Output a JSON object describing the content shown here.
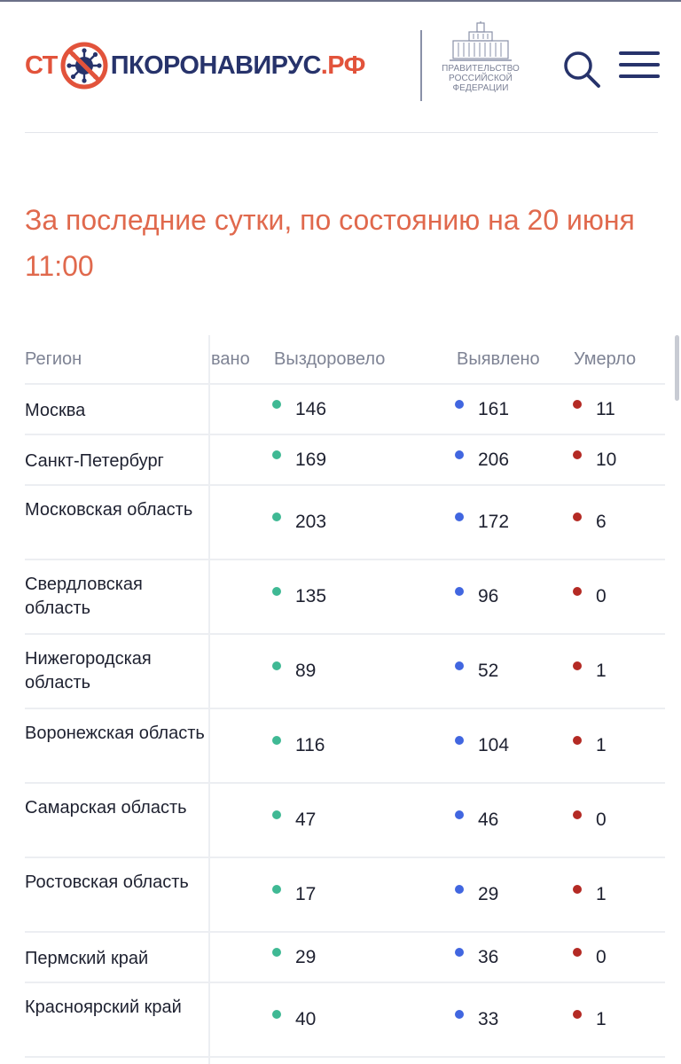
{
  "header": {
    "logo": {
      "part1": "СТ",
      "part2": "ПКОРОНАВИРУС",
      "part3": ".РФ",
      "icon": "virus-stop-icon"
    },
    "gov": {
      "lines": [
        "ПРАВИТЕЛЬСТВО",
        "РОССИЙСКОЙ",
        "ФЕДЕРАЦИИ"
      ],
      "icon": "government-building-icon"
    },
    "search_icon": "search-icon",
    "menu_icon": "hamburger-menu-icon"
  },
  "heading": {
    "line1": "За последние сутки, по состоянию на 20 июня",
    "line2": "11:00"
  },
  "table": {
    "columns": {
      "region": "Регион",
      "hidden": "вано",
      "recovered": "Выздоровело",
      "detected": "Выявлено",
      "died": "Умерло"
    },
    "rows": [
      {
        "region": "Москва",
        "recovered": "146",
        "detected": "161",
        "died": "11"
      },
      {
        "region": "Санкт-Петербург",
        "recovered": "169",
        "detected": "206",
        "died": "10"
      },
      {
        "region": "Московская область",
        "recovered": "203",
        "detected": "172",
        "died": "6"
      },
      {
        "region": "Свердловская область",
        "recovered": "135",
        "detected": "96",
        "died": "0"
      },
      {
        "region": "Нижегородская область",
        "recovered": "89",
        "detected": "52",
        "died": "1"
      },
      {
        "region": "Воронежская область",
        "recovered": "116",
        "detected": "104",
        "died": "1"
      },
      {
        "region": "Самарская область",
        "recovered": "47",
        "detected": "46",
        "died": "0"
      },
      {
        "region": "Ростовская область",
        "recovered": "17",
        "detected": "29",
        "died": "1"
      },
      {
        "region": "Пермский край",
        "recovered": "29",
        "detected": "36",
        "died": "0"
      },
      {
        "region": "Красноярский край",
        "recovered": "40",
        "detected": "33",
        "died": "1"
      }
    ]
  },
  "colors": {
    "accent": "#e2533b",
    "brand_blue": "#27336b",
    "heading": "#e0694d",
    "recovered_dot": "#3fb994",
    "detected_dot": "#4166e0",
    "died_dot": "#b42a24"
  }
}
